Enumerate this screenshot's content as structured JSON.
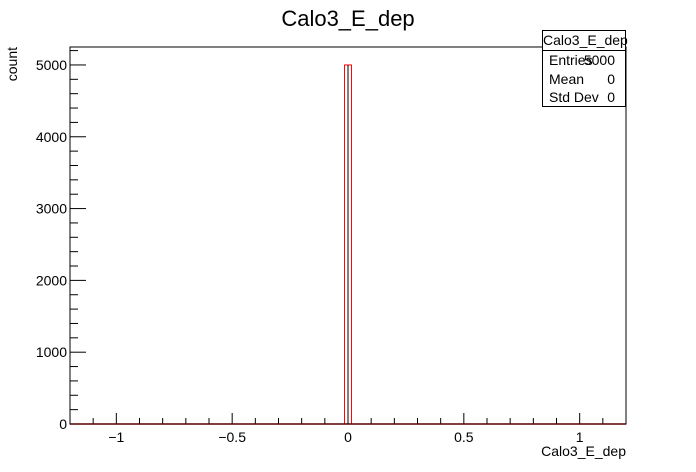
{
  "chart_data": {
    "type": "bar",
    "title": "Calo3_E_dep",
    "xlabel": "Calo3_E_dep",
    "ylabel": "count",
    "xlim": [
      -1.2,
      1.2
    ],
    "ylim": [
      0,
      5250
    ],
    "bin_width": 0.03,
    "bins": [
      {
        "x0": -0.015,
        "x1": 0.015,
        "value": 5000
      }
    ],
    "x_ticks": [
      -1,
      -0.5,
      0,
      0.5,
      1
    ],
    "x_tick_labels": [
      "−1",
      "−0.5",
      "0",
      "0.5",
      "1"
    ],
    "y_ticks": [
      0,
      1000,
      2000,
      3000,
      4000,
      5000
    ],
    "y_tick_labels": [
      "0",
      "1000",
      "2000",
      "3000",
      "4000",
      "5000"
    ],
    "line_color": "#ff0000",
    "stats": {
      "title": "Calo3_E_dep",
      "rows": [
        {
          "label": "Entries",
          "value": "5000"
        },
        {
          "label": "Mean",
          "value": "0"
        },
        {
          "label": "Std Dev",
          "value": "0"
        }
      ]
    }
  }
}
